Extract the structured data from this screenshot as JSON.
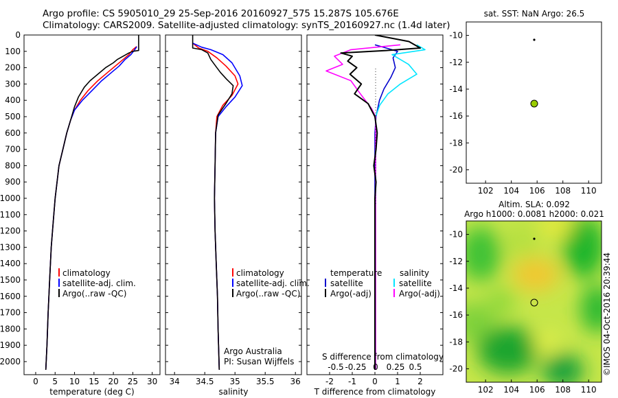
{
  "header": {
    "title_line1": "Argo profile: CS 5905010_29 25-Sep-2016 20160927_575 15.287S 105.676E",
    "title_line2": "Climatology: CARS2009. Satellite-adjusted climatology: synTS_20160927.nc (1.4d later)"
  },
  "colors": {
    "climatology": "#ff0000",
    "satellite": "#0000ff",
    "argo": "#000000",
    "t_sat": "#0000cc",
    "s_sat": "#00e5ff",
    "s_argo": "#ff00ff",
    "marker": "#99cc00"
  },
  "depth_axis": {
    "ticks": [
      0,
      100,
      200,
      300,
      400,
      500,
      600,
      700,
      800,
      900,
      1000,
      1100,
      1200,
      1300,
      1400,
      1500,
      1600,
      1700,
      1800,
      1900,
      2000
    ],
    "range": [
      0,
      2080
    ]
  },
  "temperature_panel": {
    "xlabel": "temperature (deg C)",
    "xticks": [
      0,
      5,
      10,
      15,
      20,
      25,
      30
    ],
    "xrange": [
      -3,
      32
    ],
    "legend": [
      "climatology",
      "satellite-adj. clim.",
      "Argo(..raw -QC)"
    ]
  },
  "salinity_panel": {
    "xlabel": "salinity",
    "xticks": [
      "34",
      "34.5",
      "35",
      "35.5",
      "36"
    ],
    "xrange": [
      33.85,
      36.1
    ],
    "legend": [
      "climatology",
      "satellite-adj. clim.",
      "Argo(..raw -QC)"
    ],
    "credit1": "Argo Australia",
    "credit2": "PI: Susan Wijffels"
  },
  "difference_panel": {
    "top_label": "S difference from climatology",
    "s_ticks": [
      "-0.5",
      "-0.25",
      "0",
      "0.25",
      "0.5"
    ],
    "xlabel": "T difference from climatology",
    "t_ticks": [
      "-2",
      "-1",
      "0",
      "1",
      "2"
    ],
    "legend_temp_title": "temperature",
    "legend_sal_title": "salinity",
    "legend_temp": [
      "satellite",
      "Argo(-adj)"
    ],
    "legend_sal": [
      "satellite",
      "Argo(-adj)"
    ]
  },
  "sst_map": {
    "title": "sat. SST: NaN Argo: 26.5",
    "xticks": [
      "102",
      "104",
      "106",
      "108",
      "110"
    ],
    "yticks": [
      "-10",
      "-12",
      "-14",
      "-16",
      "-18",
      "-20"
    ]
  },
  "sla_map": {
    "title1": "Altim. SLA: 0.092",
    "title2": "Argo h1000: 0.0081 h2000: 0.021",
    "xticks": [
      "102",
      "104",
      "106",
      "108",
      "110"
    ],
    "yticks": [
      "-10",
      "-12",
      "-14",
      "-16",
      "-18",
      "-20"
    ]
  },
  "stamp": "©IMOS 04-Oct-2016 20:39:44",
  "chart_data": [
    {
      "type": "line",
      "title": "",
      "xlabel": "temperature (deg C)",
      "ylabel": "",
      "xlim": [
        -3,
        32
      ],
      "ylim": [
        2080,
        0
      ],
      "series": [
        {
          "name": "climatology",
          "points": [
            [
              26,
              70
            ],
            [
              25,
              90
            ],
            [
              24,
              120
            ],
            [
              22.5,
              150
            ],
            [
              20.5,
              190
            ],
            [
              18.5,
              230
            ],
            [
              16,
              280
            ],
            [
              13.5,
              340
            ],
            [
              11.5,
              400
            ],
            [
              10,
              460
            ],
            [
              9,
              520
            ],
            [
              8,
              600
            ],
            [
              7,
              700
            ],
            [
              6,
              800
            ],
            [
              5.5,
              900
            ],
            [
              5,
              1000
            ],
            [
              4.5,
              1150
            ],
            [
              4,
              1300
            ],
            [
              3.6,
              1500
            ],
            [
              3.2,
              1700
            ],
            [
              2.9,
              1900
            ],
            [
              2.6,
              2050
            ]
          ]
        },
        {
          "name": "satellite-adj. clim.",
          "points": [
            [
              26,
              72
            ],
            [
              25.5,
              90
            ],
            [
              24.5,
              120
            ],
            [
              23,
              150
            ],
            [
              21.5,
              190
            ],
            [
              19.5,
              230
            ],
            [
              17,
              280
            ],
            [
              14.5,
              340
            ],
            [
              12,
              400
            ],
            [
              10,
              460
            ],
            [
              9,
              520
            ],
            [
              8,
              600
            ],
            [
              7,
              700
            ],
            [
              6,
              800
            ],
            [
              5.5,
              900
            ],
            [
              5,
              1000
            ],
            [
              4.5,
              1150
            ],
            [
              4,
              1300
            ],
            [
              3.6,
              1500
            ],
            [
              3.2,
              1700
            ],
            [
              2.9,
              1900
            ],
            [
              2.6,
              2050
            ]
          ]
        },
        {
          "name": "Argo(..raw -QC)",
          "points": [
            [
              26.5,
              0
            ],
            [
              26.5,
              95
            ],
            [
              25,
              100
            ],
            [
              24,
              110
            ],
            [
              22.5,
              130
            ],
            [
              21,
              150
            ],
            [
              20,
              170
            ],
            [
              18,
              200
            ],
            [
              16,
              240
            ],
            [
              14,
              280
            ],
            [
              12.5,
              320
            ],
            [
              11,
              380
            ],
            [
              10,
              440
            ],
            [
              9,
              520
            ],
            [
              8,
              600
            ],
            [
              7,
              700
            ],
            [
              6,
              800
            ],
            [
              5.5,
              900
            ],
            [
              5,
              1000
            ],
            [
              4.5,
              1150
            ],
            [
              4,
              1300
            ],
            [
              3.6,
              1500
            ],
            [
              3.2,
              1700
            ],
            [
              2.9,
              1900
            ],
            [
              2.6,
              2050
            ]
          ]
        }
      ]
    },
    {
      "type": "line",
      "title": "",
      "xlabel": "salinity",
      "ylabel": "",
      "xlim": [
        33.85,
        36.1
      ],
      "ylim": [
        2080,
        0
      ],
      "series": [
        {
          "name": "climatology",
          "points": [
            [
              34.3,
              50
            ],
            [
              34.4,
              80
            ],
            [
              34.55,
              100
            ],
            [
              34.7,
              140
            ],
            [
              34.85,
              190
            ],
            [
              35,
              250
            ],
            [
              35.05,
              300
            ],
            [
              34.95,
              370
            ],
            [
              34.8,
              430
            ],
            [
              34.7,
              500
            ],
            [
              34.68,
              600
            ],
            [
              34.67,
              800
            ],
            [
              34.66,
              1000
            ],
            [
              34.67,
              1200
            ],
            [
              34.69,
              1400
            ],
            [
              34.71,
              1600
            ],
            [
              34.72,
              1800
            ],
            [
              34.74,
              2050
            ]
          ]
        },
        {
          "name": "satellite-adj. clim.",
          "points": [
            [
              34.3,
              50
            ],
            [
              34.45,
              75
            ],
            [
              34.6,
              90
            ],
            [
              34.8,
              120
            ],
            [
              34.95,
              170
            ],
            [
              35.08,
              250
            ],
            [
              35.12,
              310
            ],
            [
              35.0,
              380
            ],
            [
              34.85,
              440
            ],
            [
              34.72,
              500
            ],
            [
              34.68,
              600
            ],
            [
              34.67,
              800
            ],
            [
              34.66,
              1000
            ],
            [
              34.67,
              1200
            ],
            [
              34.69,
              1400
            ],
            [
              34.71,
              1600
            ],
            [
              34.72,
              1800
            ],
            [
              34.74,
              2050
            ]
          ]
        },
        {
          "name": "Argo(..raw -QC)",
          "points": [
            [
              34.3,
              0
            ],
            [
              34.3,
              80
            ],
            [
              34.45,
              90
            ],
            [
              34.55,
              110
            ],
            [
              34.6,
              150
            ],
            [
              34.68,
              190
            ],
            [
              34.76,
              230
            ],
            [
              34.86,
              270
            ],
            [
              34.97,
              310
            ],
            [
              34.95,
              360
            ],
            [
              34.85,
              420
            ],
            [
              34.72,
              490
            ],
            [
              34.68,
              600
            ],
            [
              34.67,
              800
            ],
            [
              34.66,
              1000
            ],
            [
              34.67,
              1200
            ],
            [
              34.69,
              1400
            ],
            [
              34.71,
              1600
            ],
            [
              34.72,
              1800
            ],
            [
              34.74,
              2050
            ]
          ]
        }
      ]
    },
    {
      "type": "line",
      "title": "",
      "xlabel": "T difference from climatology",
      "ylabel": "",
      "xlim": [
        -3,
        3
      ],
      "ylim": [
        2080,
        0
      ],
      "series": [
        {
          "name": "satellite",
          "points": [
            [
              0,
              60
            ],
            [
              0.5,
              80
            ],
            [
              1.0,
              100
            ],
            [
              0.8,
              140
            ],
            [
              0.9,
              200
            ],
            [
              0.7,
              260
            ],
            [
              0.4,
              330
            ],
            [
              0.2,
              400
            ],
            [
              0.05,
              500
            ],
            [
              0,
              600
            ],
            [
              0,
              2050
            ]
          ]
        },
        {
          "name": "Argo(-adj)",
          "points": [
            [
              0,
              0
            ],
            [
              1.5,
              40
            ],
            [
              2.0,
              80
            ],
            [
              0.5,
              95
            ],
            [
              -1.5,
              110
            ],
            [
              -1.0,
              130
            ],
            [
              -1.2,
              160
            ],
            [
              -0.8,
              200
            ],
            [
              -1.1,
              240
            ],
            [
              -0.6,
              300
            ],
            [
              -0.9,
              360
            ],
            [
              -0.3,
              420
            ],
            [
              0,
              500
            ],
            [
              0.1,
              600
            ],
            [
              0.05,
              700
            ],
            [
              -0.05,
              800
            ],
            [
              0.05,
              900
            ],
            [
              0,
              1000
            ],
            [
              0,
              2050
            ]
          ]
        },
        {
          "name": "satellite",
          "points": [
            [
              0.5,
              60
            ],
            [
              0.6,
              90
            ],
            [
              0.2,
              120
            ],
            [
              0.4,
              180
            ],
            [
              0.5,
              240
            ],
            [
              0.3,
              300
            ],
            [
              0.15,
              360
            ],
            [
              0.05,
              430
            ],
            [
              0,
              500
            ],
            [
              0,
              2050
            ]
          ]
        },
        {
          "name": "Argo(-adj)",
          "points": [
            [
              0.3,
              60
            ],
            [
              -0.3,
              90
            ],
            [
              -0.5,
              130
            ],
            [
              -0.4,
              180
            ],
            [
              -0.6,
              220
            ],
            [
              -0.3,
              280
            ],
            [
              -0.2,
              350
            ],
            [
              -0.05,
              450
            ],
            [
              0,
              500
            ],
            [
              0,
              2050
            ]
          ]
        }
      ]
    },
    {
      "type": "scatter",
      "title": "sat. SST: NaN Argo: 26.5",
      "xlabel": "",
      "ylabel": "",
      "xlim": [
        100.5,
        111
      ],
      "ylim": [
        -21,
        -9
      ],
      "points": [
        [
          105.676,
          -15.287
        ]
      ]
    },
    {
      "type": "heatmap",
      "title": "Altim. SLA: 0.092",
      "xlabel": "",
      "ylabel": "",
      "xlim": [
        100.5,
        111
      ],
      "ylim": [
        -21,
        -9
      ],
      "points": [
        [
          105.676,
          -15.287
        ]
      ]
    }
  ]
}
